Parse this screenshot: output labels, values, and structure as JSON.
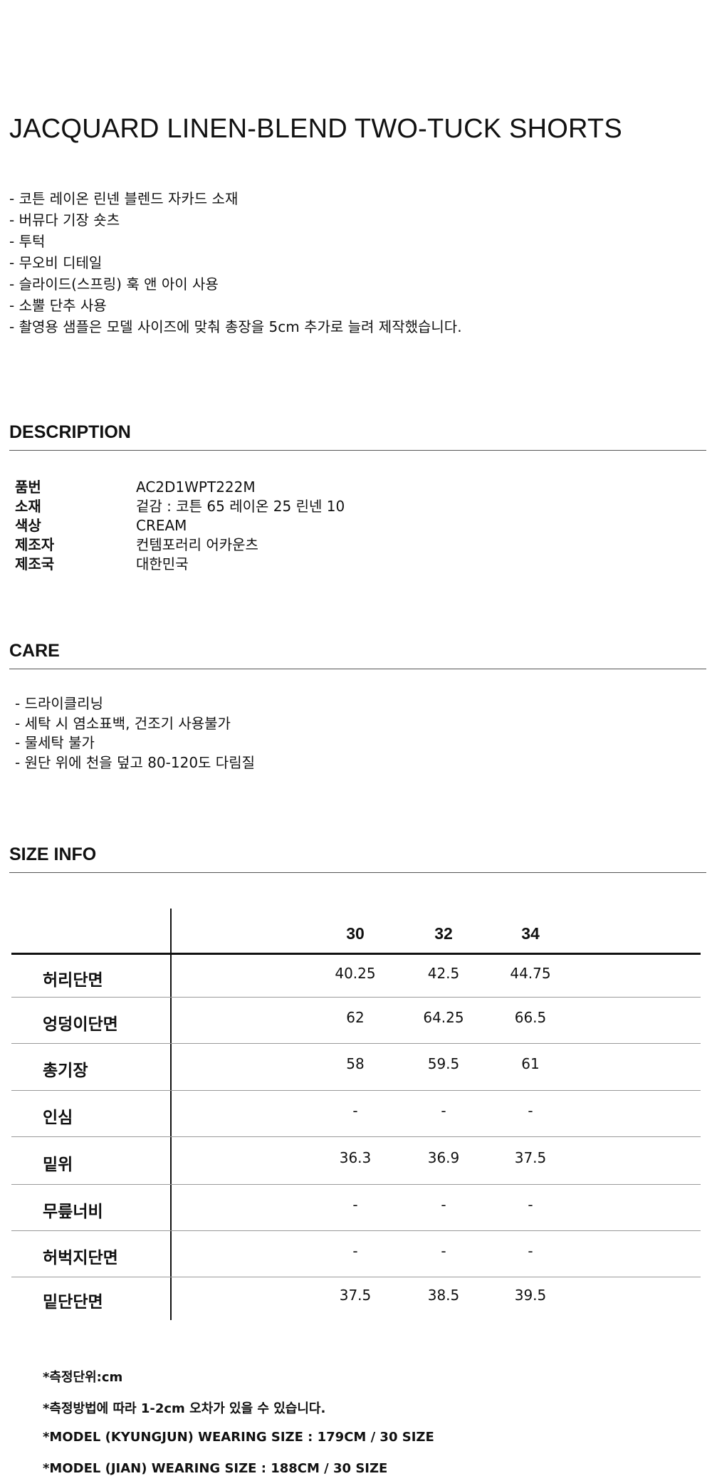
{
  "title": "JACQUARD LINEN-BLEND TWO-TUCK SHORTS",
  "features": [
    "- 코튼 레이온 린넨 블렌드 자카드 소재",
    "- 버뮤다 기장 숏츠",
    "- 투턱",
    "- 무오비 디테일",
    "- 슬라이드(스프링) 훅 앤 아이 사용",
    "- 소뿔 단추 사용",
    "- 촬영용 샘플은 모델 사이즈에 맞춰 총장을 5cm 추가로 늘려 제작했습니다."
  ],
  "description": {
    "heading": "DESCRIPTION",
    "rows": [
      {
        "label": "품번",
        "value": "AC2D1WPT222M"
      },
      {
        "label": "소재",
        "value": "겉감 : 코튼 65 레이온 25 린넨 10"
      },
      {
        "label": "색상",
        "value": "CREAM"
      },
      {
        "label": "제조자",
        "value": "컨템포러리 어카운츠"
      },
      {
        "label": "제조국",
        "value": "대한민국"
      }
    ]
  },
  "care": {
    "heading": "CARE",
    "items": [
      "- 드라이클리닝",
      "- 세탁 시 염소표백, 건조기 사용불가",
      "- 물세탁 불가",
      "- 원단 위에 천을 덮고 80-120도 다림질"
    ]
  },
  "size_info": {
    "heading": "SIZE INFO",
    "sizes": [
      "30",
      "32",
      "34"
    ],
    "rows": [
      {
        "label": "허리단면",
        "values": [
          "40.25",
          "42.5",
          "44.75"
        ]
      },
      {
        "label": "엉덩이단면",
        "values": [
          "62",
          "64.25",
          "66.5"
        ]
      },
      {
        "label": "총기장",
        "values": [
          "58",
          "59.5",
          "61"
        ]
      },
      {
        "label": "인심",
        "values": [
          "-",
          "-",
          "-"
        ]
      },
      {
        "label": "밑위",
        "values": [
          "36.3",
          "36.9",
          "37.5"
        ]
      },
      {
        "label": "무릎너비",
        "values": [
          "-",
          "-",
          "-"
        ]
      },
      {
        "label": "허벅지단면",
        "values": [
          "-",
          "-",
          "-"
        ]
      },
      {
        "label": "밑단단면",
        "values": [
          "37.5",
          "38.5",
          "39.5"
        ]
      }
    ],
    "notes": [
      "*측정단위:cm",
      "*측정방법에 따라 1-2cm 오차가 있을 수 있습니다.",
      "*MODEL (KYUNGJUN) WEARING SIZE : 179CM / 30 SIZE",
      "*MODEL (JIAN) WEARING SIZE : 188CM / 30 SIZE"
    ]
  }
}
